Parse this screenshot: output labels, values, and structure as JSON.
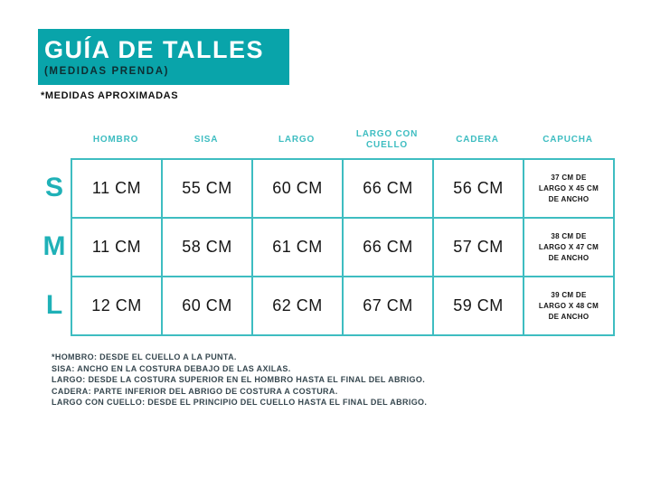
{
  "header": {
    "title": "GUÍA DE TALLES",
    "subtitle": "(MEDIDAS PRENDA)",
    "note": "*MEDIDAS APROXIMADAS"
  },
  "colors": {
    "banner_teal": "#09a4aa",
    "border_teal": "#3ebdc1",
    "header_text_teal": "#3ebdc1",
    "size_label_teal": "#1fb1b7",
    "subtitle_dark": "#0e2d31",
    "cell_text": "#151515",
    "footnote_text": "#36474f"
  },
  "table": {
    "columns": [
      "HOMBRO",
      "SISA",
      "LARGO",
      "LARGO CON CUELLO",
      "CADERA",
      "CAPUCHA"
    ],
    "rows": [
      {
        "size": "S",
        "values": [
          "11 CM",
          "55 CM",
          "60 CM",
          "66 CM",
          "56 CM"
        ],
        "capucha": "37 CM DE\nLARGO X 45 CM\nDE ANCHO"
      },
      {
        "size": "M",
        "values": [
          "11 CM",
          "58 CM",
          "61 CM",
          "66 CM",
          "57 CM"
        ],
        "capucha": "38 CM DE\nLARGO X 47 CM\nDE ANCHO"
      },
      {
        "size": "L",
        "values": [
          "12 CM",
          "60 CM",
          "62 CM",
          "67 CM",
          "59 CM"
        ],
        "capucha": "39 CM DE\nLARGO X 48 CM\nDE ANCHO"
      }
    ]
  },
  "footnotes": [
    "*HOMBRO: DESDE EL CUELLO A LA PUNTA.",
    "SISA: ANCHO EN LA COSTURA DEBAJO DE LAS AXILAS.",
    "LARGO: DESDE LA COSTURA SUPERIOR EN EL HOMBRO HASTA EL FINAL DEL ABRIGO.",
    "CADERA: PARTE INFERIOR DEL ABRIGO DE COSTURA A COSTURA.",
    "LARGO CON CUELLO: DESDE EL PRINCIPIO DEL CUELLO HASTA EL FINAL DEL ABRIGO."
  ]
}
